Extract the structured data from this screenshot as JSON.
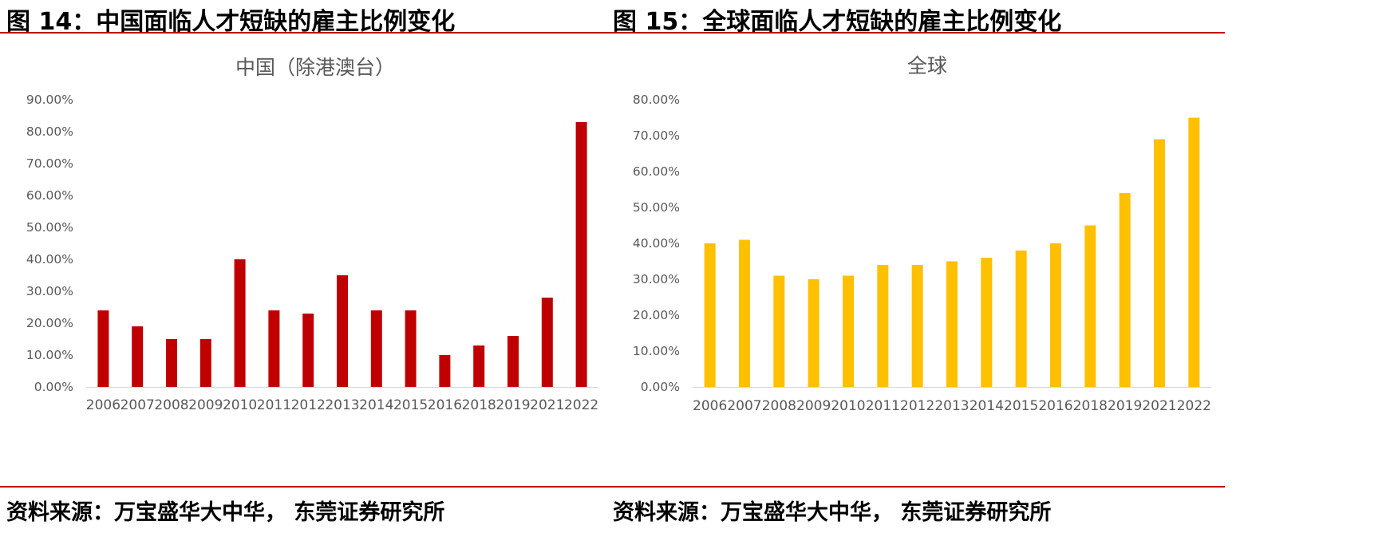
{
  "figures": [
    {
      "caption": "图 14：中国面临人才短缺的雇主比例变化",
      "source": "资料来源：万宝盛华大中华， 东莞证券研究所"
    },
    {
      "caption": "图 15：全球面临人才短缺的雇主比例变化",
      "source": "资料来源：万宝盛华大中华， 东莞证券研究所"
    }
  ],
  "chart_data": [
    {
      "type": "bar",
      "title": "中国（除港澳台）",
      "categories": [
        "2006",
        "2007",
        "2008",
        "2009",
        "2010",
        "2011",
        "2012",
        "2013",
        "2014",
        "2015",
        "2016",
        "2018",
        "2019",
        "2021",
        "2022"
      ],
      "values": [
        24,
        19,
        15,
        15,
        40,
        24,
        23,
        35,
        24,
        24,
        10,
        13,
        16,
        28,
        83
      ],
      "yticks": [
        "0.00%",
        "10.00%",
        "20.00%",
        "30.00%",
        "40.00%",
        "50.00%",
        "60.00%",
        "70.00%",
        "80.00%",
        "90.00%"
      ],
      "ylim": [
        0,
        90
      ],
      "xlabel": "",
      "ylabel": "",
      "color": "#c00000"
    },
    {
      "type": "bar",
      "title": "全球",
      "categories": [
        "2006",
        "2007",
        "2008",
        "2009",
        "2010",
        "2011",
        "2012",
        "2013",
        "2014",
        "2015",
        "2016",
        "2018",
        "2019",
        "2021",
        "2022"
      ],
      "values": [
        40,
        41,
        31,
        30,
        31,
        34,
        34,
        35,
        36,
        38,
        40,
        45,
        54,
        69,
        75
      ],
      "yticks": [
        "0.00%",
        "10.00%",
        "20.00%",
        "30.00%",
        "40.00%",
        "50.00%",
        "60.00%",
        "70.00%",
        "80.00%"
      ],
      "ylim": [
        0,
        80
      ],
      "xlabel": "",
      "ylabel": "",
      "color": "#ffc000"
    }
  ],
  "colors": {
    "rule": "#c00000",
    "axis_text": "#595959"
  }
}
